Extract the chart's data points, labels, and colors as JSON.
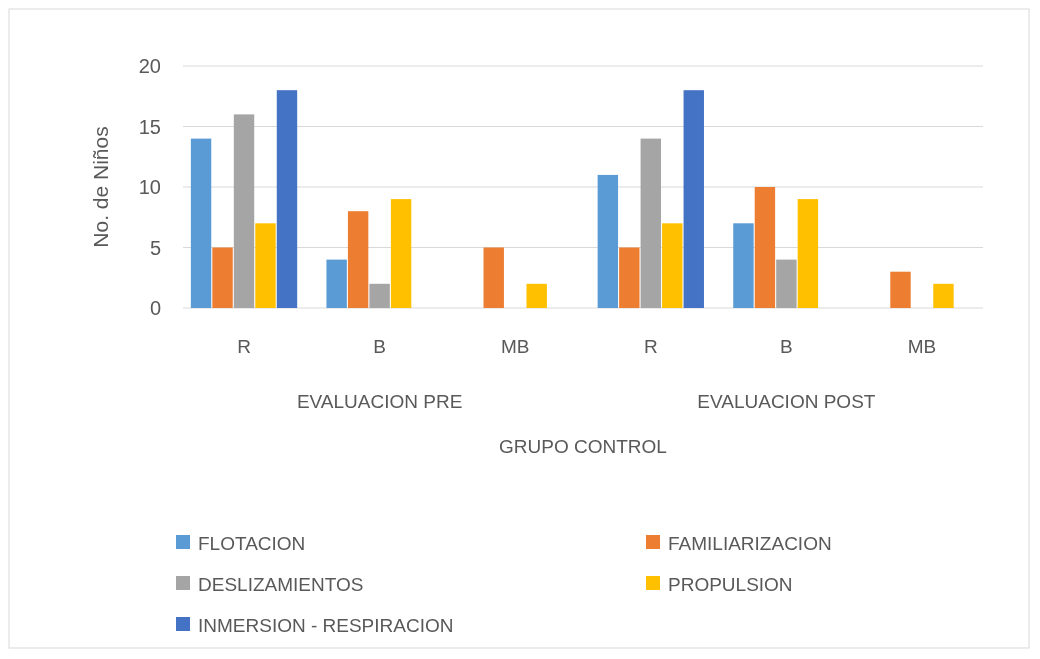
{
  "chart_data": {
    "type": "bar",
    "ylabel": "No. de Niños",
    "xlabel": "GRUPO CONTROL",
    "categories": [
      "R",
      "B",
      "MB",
      "R",
      "B",
      "MB"
    ],
    "annotations": [
      "EVALUACION PRE",
      "EVALUACION POST"
    ],
    "series": [
      {
        "name": "FLOTACION",
        "color": "#5b9bd5",
        "values": [
          14,
          4,
          null,
          11,
          7,
          null
        ]
      },
      {
        "name": "FAMILIARIZACION",
        "color": "#ed7d31",
        "values": [
          5,
          8,
          5,
          5,
          10,
          3
        ]
      },
      {
        "name": "DESLIZAMIENTOS",
        "color": "#a5a5a5",
        "values": [
          16,
          2,
          null,
          14,
          4,
          null
        ]
      },
      {
        "name": "PROPULSION",
        "color": "#ffc000",
        "values": [
          7,
          9,
          2,
          7,
          9,
          2
        ]
      },
      {
        "name": "INMERSION - RESPIRACION",
        "color": "#4472c4",
        "values": [
          18,
          null,
          null,
          18,
          null,
          null
        ]
      }
    ],
    "ylim": [
      0,
      20
    ],
    "yticks": [
      0,
      5,
      10,
      15,
      20
    ],
    "grid": "y",
    "legend": "bottom"
  }
}
